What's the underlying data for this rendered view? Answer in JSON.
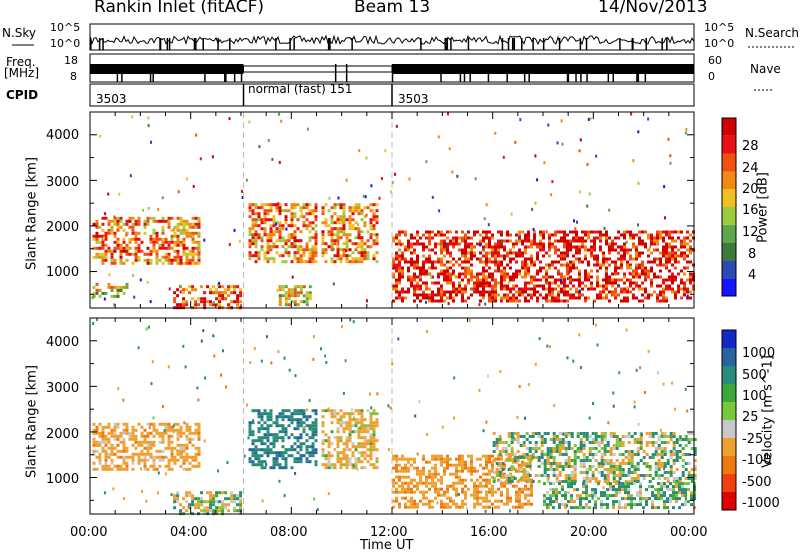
{
  "header": {
    "station": "Rankin Inlet (fitACF)",
    "beam": "Beam 13",
    "date": "14/Nov/2013"
  },
  "strip": {
    "nsky_label": "N.Sky",
    "nsky_ticks": [
      "10^5",
      "10^0"
    ],
    "nsearch_label": "N.Search",
    "nsearch_ticks": [
      "10^5",
      "10^0"
    ],
    "freq_label": "Freq.",
    "freq_unit": "[MHz]",
    "freq_ticks": [
      "18",
      "8"
    ],
    "nave_label": "Nave",
    "nave_ticks": [
      "60",
      "0"
    ],
    "cpid_label": "CPID",
    "cpid_segments": [
      {
        "label": "3503",
        "start_hour": 0,
        "end_hour": 6.1
      },
      {
        "label": "normal (fast) 151",
        "start_hour": 6.1,
        "end_hour": 12.0
      },
      {
        "label": "3503",
        "start_hour": 12.0,
        "end_hour": 24
      }
    ]
  },
  "colors": {
    "power_scale": [
      "#1414ff",
      "#2a4ab0",
      "#3c7a3c",
      "#5ea84c",
      "#9ccc3c",
      "#f0c020",
      "#f08a10",
      "#f05010",
      "#e81010",
      "#d00000"
    ],
    "velocity_scale": [
      "#1428c8",
      "#2864a0",
      "#288c78",
      "#3ca83c",
      "#78c83c",
      "#c8c8c8",
      "#f0a030",
      "#f07810",
      "#f04010",
      "#e00000"
    ]
  },
  "chart_data": [
    {
      "type": "heatmap",
      "title": "",
      "ylabel": "Slant Range [km]",
      "xlabel": "Time UT",
      "xlim": [
        "00:00",
        "24:00"
      ],
      "ylim": [
        200,
        4500
      ],
      "x_ticks": [
        "00:00",
        "04:00",
        "08:00",
        "12:00",
        "16:00",
        "20:00",
        "00:00"
      ],
      "y_ticks": [
        "1000",
        "2000",
        "3000",
        "4000"
      ],
      "colorbar": {
        "label": "Power [dB]",
        "ticks": [
          "28",
          "24",
          "20",
          "16",
          "12",
          "8",
          "4"
        ],
        "range": [
          0,
          30
        ]
      },
      "regions": [
        {
          "t0": 0.1,
          "t1": 4.3,
          "r0": 1200,
          "r1": 2200,
          "level": 20
        },
        {
          "t0": 0.1,
          "t1": 1.5,
          "r0": 450,
          "r1": 750,
          "level": 14
        },
        {
          "t0": 3.3,
          "t1": 6.0,
          "r0": 200,
          "r1": 700,
          "level": 22
        },
        {
          "t0": 6.3,
          "t1": 9.0,
          "r0": 1200,
          "r1": 2500,
          "level": 20
        },
        {
          "t0": 7.5,
          "t1": 8.8,
          "r0": 300,
          "r1": 700,
          "level": 16
        },
        {
          "t0": 9.2,
          "t1": 11.4,
          "r0": 1200,
          "r1": 2500,
          "level": 20
        },
        {
          "t0": 12.0,
          "t1": 24.0,
          "r0": 350,
          "r1": 1900,
          "level": 26
        }
      ]
    },
    {
      "type": "heatmap",
      "title": "",
      "ylabel": "Slant Range [km]",
      "xlabel": "Time UT",
      "xlim": [
        "00:00",
        "24:00"
      ],
      "ylim": [
        200,
        4500
      ],
      "x_ticks": [
        "00:00",
        "04:00",
        "08:00",
        "12:00",
        "16:00",
        "20:00",
        "00:00"
      ],
      "y_ticks": [
        "1000",
        "2000",
        "3000",
        "4000"
      ],
      "colorbar": {
        "label": "Velocity [m s^-1]",
        "ticks": [
          "1000",
          "500",
          "100",
          "25",
          "-25",
          "-100",
          "-500",
          "-1000"
        ]
      },
      "regions": [
        {
          "t0": 0.1,
          "t1": 4.3,
          "r0": 1200,
          "r1": 2200,
          "velocity": -300
        },
        {
          "t0": 3.3,
          "t1": 6.0,
          "r0": 200,
          "r1": 700,
          "velocity": 0
        },
        {
          "t0": 6.3,
          "t1": 9.0,
          "r0": 1200,
          "r1": 2500,
          "velocity": 400
        },
        {
          "t0": 9.2,
          "t1": 11.4,
          "r0": 1200,
          "r1": 2500,
          "velocity": -200
        },
        {
          "t0": 12.0,
          "t1": 17.5,
          "r0": 350,
          "r1": 1500,
          "velocity": -400
        },
        {
          "t0": 16.0,
          "t1": 24.0,
          "r0": 900,
          "r1": 2000,
          "velocity": 0
        },
        {
          "t0": 18.0,
          "t1": 24.0,
          "r0": 350,
          "r1": 900,
          "velocity": 80
        }
      ]
    }
  ]
}
